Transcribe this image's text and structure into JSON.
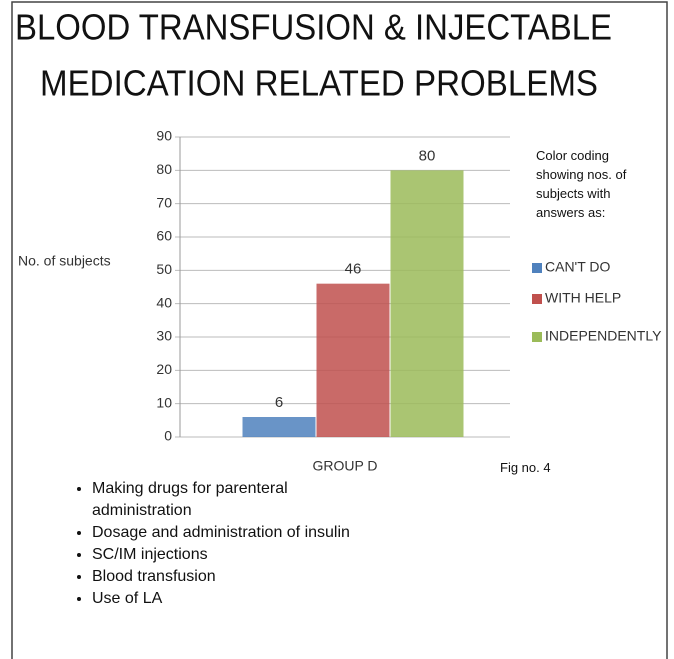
{
  "chart_data": {
    "type": "bar",
    "title": [
      "BLOOD TRANSFUSION & INJECTABLE",
      "MEDICATION RELATED PROBLEMS"
    ],
    "y_label": "No. of subjects",
    "legend_title": "Color coding showing nos. of subjects with answers as:",
    "categories": [
      "GROUP D"
    ],
    "series": [
      {
        "name": "CAN'T DO",
        "color": "#4f81bd",
        "values": [
          6
        ]
      },
      {
        "name": "WITH HELP",
        "color": "#c0504d",
        "values": [
          46
        ]
      },
      {
        "name": "INDEPENDENTLY",
        "color": "#9bbb59",
        "values": [
          80
        ]
      }
    ],
    "ylim": [
      0,
      90
    ],
    "yticks": [
      0,
      10,
      20,
      30,
      40,
      50,
      60,
      70,
      80,
      90
    ],
    "grid": true,
    "legend": "right",
    "figure_label": "Fig no. 4",
    "notes": [
      "Making drugs for parenteral administration",
      "Dosage and administration of insulin",
      "SC/IM injections",
      "Blood transfusion",
      "Use of LA"
    ]
  }
}
